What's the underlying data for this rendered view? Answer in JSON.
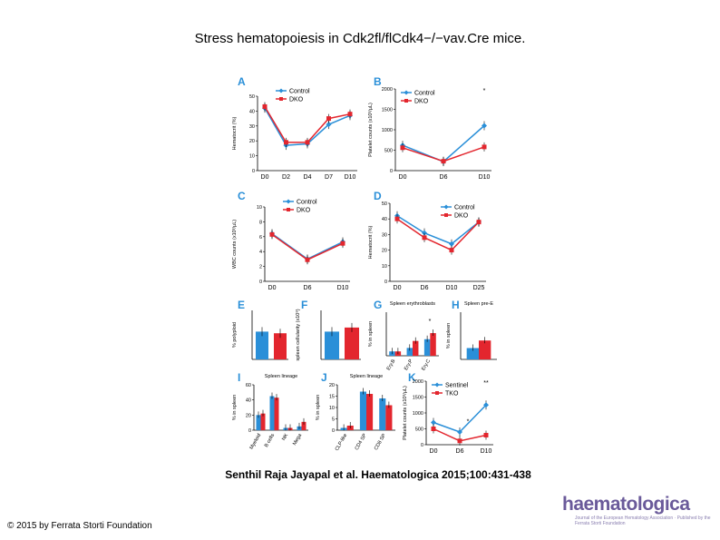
{
  "page": {
    "title": "Stress hematopoiesis in Cdk2fl/flCdk4−/−vav.Cre mice.",
    "citation": "Senthil Raja Jayapal et al. Haematologica 2015;100:431-438",
    "copyright": "© 2015 by Ferrata Storti Foundation",
    "logo": {
      "word": "haematologica",
      "subtitle": "Journal of the European Hematology Association · Published by the Ferrata Storti Foundation"
    }
  },
  "colors": {
    "control": "#2a8fd8",
    "dko": "#e3262e",
    "axis": "#000000"
  },
  "chart_data": [
    {
      "id": "A",
      "type": "line",
      "ylabel": "Hematocrit (%)",
      "categories": [
        "D0",
        "D2",
        "D4",
        "D7",
        "D10"
      ],
      "ylim": [
        0,
        50
      ],
      "yticks": [
        0,
        10,
        20,
        30,
        40,
        50
      ],
      "legend": "top",
      "series": [
        {
          "name": "Control",
          "values": [
            42,
            17,
            18,
            31,
            37
          ]
        },
        {
          "name": "DKO",
          "values": [
            43,
            19,
            19,
            35,
            38
          ]
        }
      ]
    },
    {
      "id": "B",
      "type": "line",
      "ylabel": "Platelet counts (x10³/µL)",
      "categories": [
        "D0",
        "D6",
        "D10"
      ],
      "ylim": [
        0,
        2000
      ],
      "yticks": [
        0,
        500,
        1000,
        1500,
        2000
      ],
      "legend": "top-left",
      "annotations": [
        "*"
      ],
      "series": [
        {
          "name": "Control",
          "values": [
            620,
            220,
            1100
          ]
        },
        {
          "name": "DKO",
          "values": [
            560,
            230,
            580
          ]
        }
      ]
    },
    {
      "id": "C",
      "type": "line",
      "ylabel": "WBC counts (x10³/µL)",
      "categories": [
        "D0",
        "D6",
        "D10"
      ],
      "ylim": [
        0,
        10
      ],
      "yticks": [
        0,
        2,
        4,
        6,
        8,
        10
      ],
      "legend": "top",
      "series": [
        {
          "name": "Control",
          "values": [
            6.4,
            3.0,
            5.3
          ]
        },
        {
          "name": "DKO",
          "values": [
            6.3,
            2.9,
            5.1
          ]
        }
      ]
    },
    {
      "id": "D",
      "type": "line",
      "ylabel": "Hematocrit (%)",
      "categories": [
        "D0",
        "D6",
        "D10",
        "D25"
      ],
      "ylim": [
        0,
        50
      ],
      "yticks": [
        0,
        10,
        20,
        30,
        40,
        50
      ],
      "legend": "top-right",
      "series": [
        {
          "name": "Control",
          "values": [
            42,
            31,
            24,
            38
          ]
        },
        {
          "name": "DKO",
          "values": [
            40,
            28,
            20,
            38
          ]
        }
      ]
    },
    {
      "id": "E",
      "type": "bar",
      "ylabel": "% polyploid",
      "categories": [
        "",
        ""
      ],
      "ylim": [
        0,
        30
      ],
      "series": [
        {
          "name": "",
          "values": [
            17,
            16
          ]
        }
      ]
    },
    {
      "id": "F",
      "type": "bar",
      "ylabel": "spleen cellularity (x10⁸)",
      "categories": [
        "",
        ""
      ],
      "ylim": [
        0,
        0.006
      ],
      "series": [
        {
          "name": "",
          "values": [
            0.0034,
            0.0039
          ]
        }
      ]
    },
    {
      "id": "G",
      "type": "bar",
      "subtitle": "Spleen erythroblasts",
      "ylabel": "% in spleen",
      "categories": [
        "Ery.B",
        "Ery.P",
        "Ery.C"
      ],
      "ylim": [
        0,
        50
      ],
      "annotations": [
        "*"
      ],
      "series": [
        {
          "name": "Control",
          "values": [
            5,
            9,
            19
          ]
        },
        {
          "name": "DKO",
          "values": [
            5,
            17,
            26
          ]
        }
      ]
    },
    {
      "id": "H",
      "type": "bar",
      "subtitle": "Spleen pre-E",
      "ylabel": "% in spleen",
      "categories": [
        ""
      ],
      "ylim": [
        0,
        0.5
      ],
      "series": [
        {
          "name": "Control",
          "values": [
            0.12
          ]
        },
        {
          "name": "DKO",
          "values": [
            0.2
          ]
        }
      ]
    },
    {
      "id": "I",
      "type": "bar",
      "subtitle": "Spleen lineage",
      "ylabel": "% in spleen",
      "categories": [
        "Myeloid",
        "B cells",
        "NK",
        "Mega"
      ],
      "ylim": [
        0,
        60
      ],
      "yticks": [
        0,
        20,
        40,
        60
      ],
      "series": [
        {
          "name": "Control",
          "values": [
            20,
            45,
            3,
            5
          ]
        },
        {
          "name": "DKO",
          "values": [
            22,
            43,
            3,
            11
          ]
        }
      ]
    },
    {
      "id": "J",
      "type": "bar",
      "subtitle": "Spleen lineage",
      "ylabel": "% in spleen",
      "categories": [
        "CLP-like",
        "CD4 SP",
        "CD8 SP"
      ],
      "ylim": [
        0,
        20
      ],
      "yticks": [
        0,
        5,
        10,
        15,
        20
      ],
      "series": [
        {
          "name": "Control",
          "values": [
            1,
            17,
            14
          ]
        },
        {
          "name": "DKO",
          "values": [
            2,
            16,
            11
          ]
        }
      ]
    },
    {
      "id": "K",
      "type": "line",
      "ylabel": "Platelet counts (x10³/µL)",
      "categories": [
        "D0",
        "D6",
        "D10"
      ],
      "ylim": [
        0,
        2000
      ],
      "yticks": [
        0,
        500,
        1000,
        1500,
        2000
      ],
      "legend": "top-left",
      "annotations": [
        "*",
        "**"
      ],
      "series": [
        {
          "name": "Sentinel",
          "values": [
            700,
            400,
            1250
          ]
        },
        {
          "name": "TKO",
          "values": [
            500,
            120,
            300
          ]
        }
      ]
    }
  ]
}
